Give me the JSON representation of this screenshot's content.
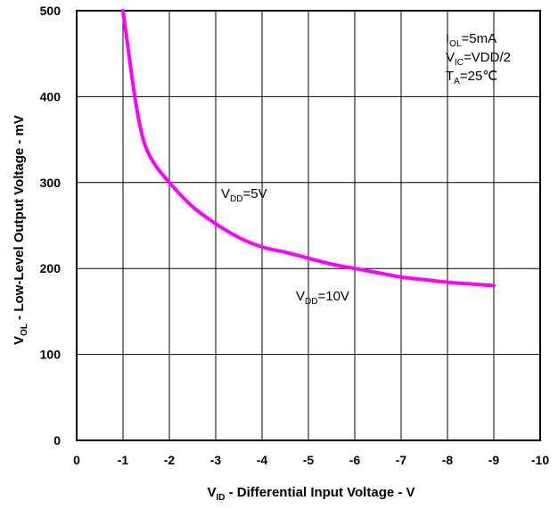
{
  "chart_data": {
    "type": "line",
    "xlabel": {
      "main": "V",
      "sub": "ID",
      "rest": " - Differential Input Voltage - V"
    },
    "ylabel": {
      "main": "V",
      "sub": "OL",
      "rest": " - Low-Level Output Voltage - mV"
    },
    "xlim": [
      0,
      -10
    ],
    "ylim": [
      0,
      500
    ],
    "x_ticks": [
      0,
      -1,
      -2,
      -3,
      -4,
      -5,
      -6,
      -7,
      -8,
      -9,
      -10
    ],
    "x_tick_labels": [
      "0",
      "-1",
      "-2",
      "-3",
      "-4",
      "-5",
      "-6",
      "-7",
      "-8",
      "-9",
      "-10"
    ],
    "y_ticks": [
      0,
      100,
      200,
      300,
      400,
      500
    ],
    "y_tick_labels": [
      "0",
      "100",
      "200",
      "300",
      "400",
      "500"
    ],
    "grid": true,
    "line_color": "#ff00ff",
    "series": [
      {
        "x": [
          -1.0,
          -1.1,
          -1.2,
          -1.3,
          -1.4,
          -1.5,
          -1.7,
          -2.0,
          -2.5,
          -3.0,
          -3.5,
          -4.0,
          -4.5,
          -5.0,
          -5.5,
          -6.0,
          -6.5,
          -7.0,
          -7.5,
          -8.0,
          -8.5,
          -9.0
        ],
        "y": [
          500,
          460,
          420,
          385,
          358,
          340,
          320,
          300,
          272,
          252,
          236,
          225,
          219,
          212,
          205,
          200,
          195,
          190,
          187,
          184,
          182,
          180
        ]
      }
    ],
    "annotations": [
      {
        "main": "V",
        "sub": "DD",
        "rest": "=5V"
      },
      {
        "main": "V",
        "sub": "DD",
        "rest": "=10V"
      }
    ],
    "conditions": [
      {
        "main": "I",
        "sub": "OL",
        "rest": "=5mA"
      },
      {
        "main": "V",
        "sub": "IC",
        "rest": "=VDD/2"
      },
      {
        "main": "T",
        "sub": "A",
        "rest": "=25℃"
      }
    ]
  }
}
